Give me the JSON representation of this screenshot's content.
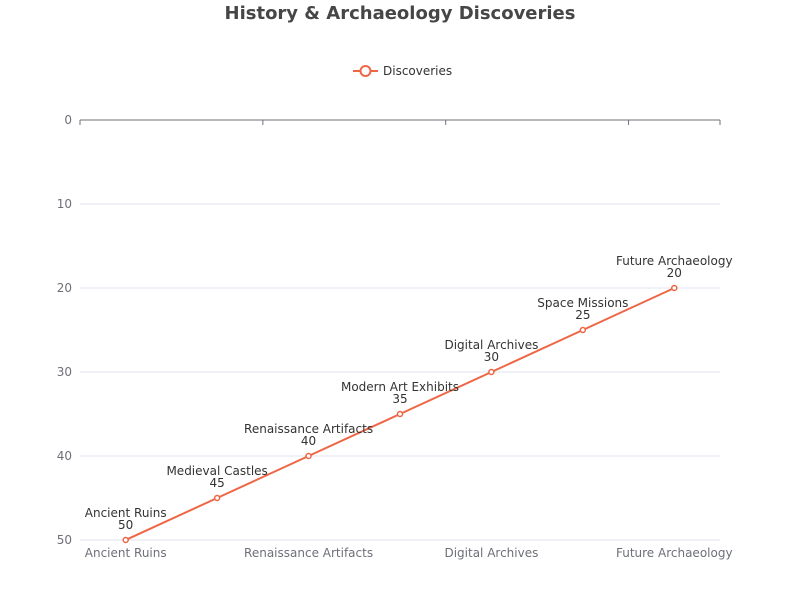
{
  "chart_data": {
    "type": "line",
    "title": "History & Archaeology Discoveries",
    "categories": [
      "Ancient Ruins",
      "Medieval Castles",
      "Renaissance Artifacts",
      "Modern Art Exhibits",
      "Digital Archives",
      "Space Missions",
      "Future Archaeology"
    ],
    "x_tick_labels": [
      "Ancient Ruins",
      "Renaissance Artifacts",
      "Digital Archives",
      "Future Archaeology"
    ],
    "series": [
      {
        "name": "Discoveries",
        "values": [
          50,
          45,
          40,
          35,
          30,
          25,
          20
        ]
      }
    ],
    "ylim": [
      0,
      50
    ],
    "y_inverted": true,
    "y_ticks": [
      0,
      10,
      20,
      30,
      40,
      50
    ],
    "xlabel": "",
    "ylabel": "",
    "legend": {
      "position": "top"
    },
    "grid": true,
    "colors": {
      "series": "#ee6646",
      "grid": "#e0e6f1",
      "axis": "#6e7079",
      "title": "#464646"
    }
  }
}
